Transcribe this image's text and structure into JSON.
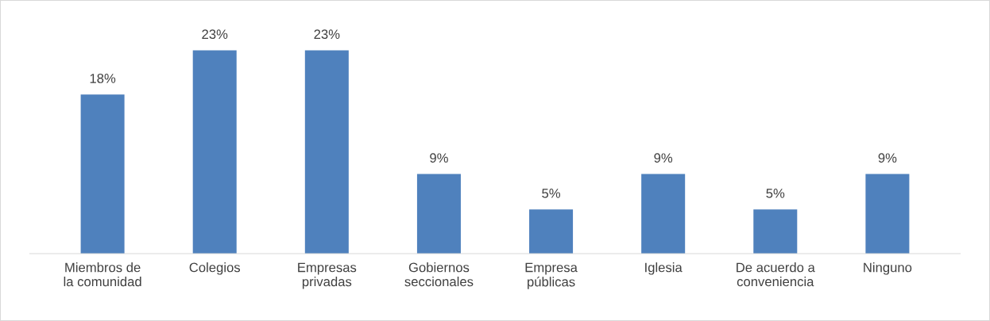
{
  "chart_data": {
    "type": "bar",
    "categories": [
      "Miembros de\nla comunidad",
      "Colegios",
      "Empresas\nprivadas",
      "Gobiernos\nseccionales",
      "Empresa\npúblicas",
      "Iglesia",
      "De acuerdo a\nconveniencia",
      "Ninguno"
    ],
    "values": [
      18,
      23,
      23,
      9,
      5,
      9,
      5,
      9
    ],
    "value_labels": [
      "18%",
      "23%",
      "23%",
      "9%",
      "5%",
      "9%",
      "5%",
      "9%"
    ],
    "color": "#4f81bd",
    "grid": false,
    "legend": false
  }
}
